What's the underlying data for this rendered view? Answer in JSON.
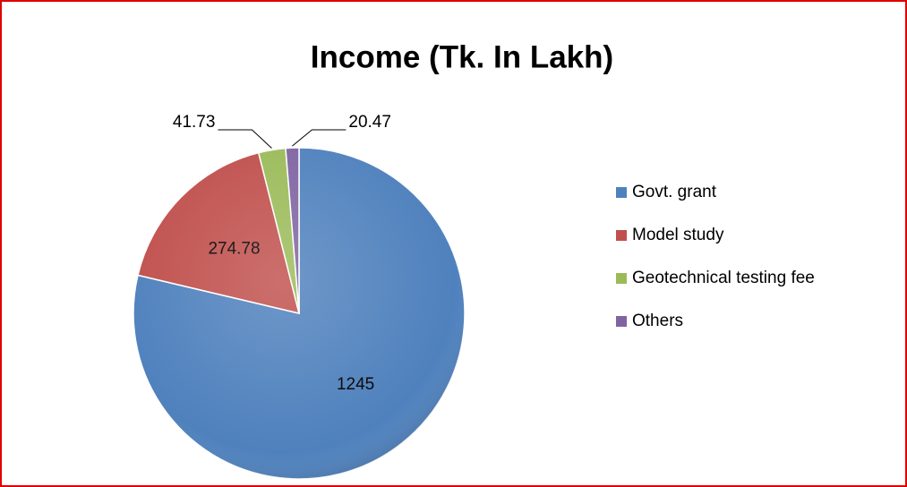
{
  "chart_data": {
    "type": "pie",
    "title": "Income (Tk. In Lakh)",
    "categories": [
      "Govt. grant",
      "Model study",
      "Geotechnical testing fee",
      "Others"
    ],
    "values": [
      1245,
      274.78,
      41.73,
      20.47
    ],
    "colors": [
      "#4f81bd",
      "#c0504d",
      "#9bbb59",
      "#8064a2"
    ],
    "legend": "right"
  }
}
